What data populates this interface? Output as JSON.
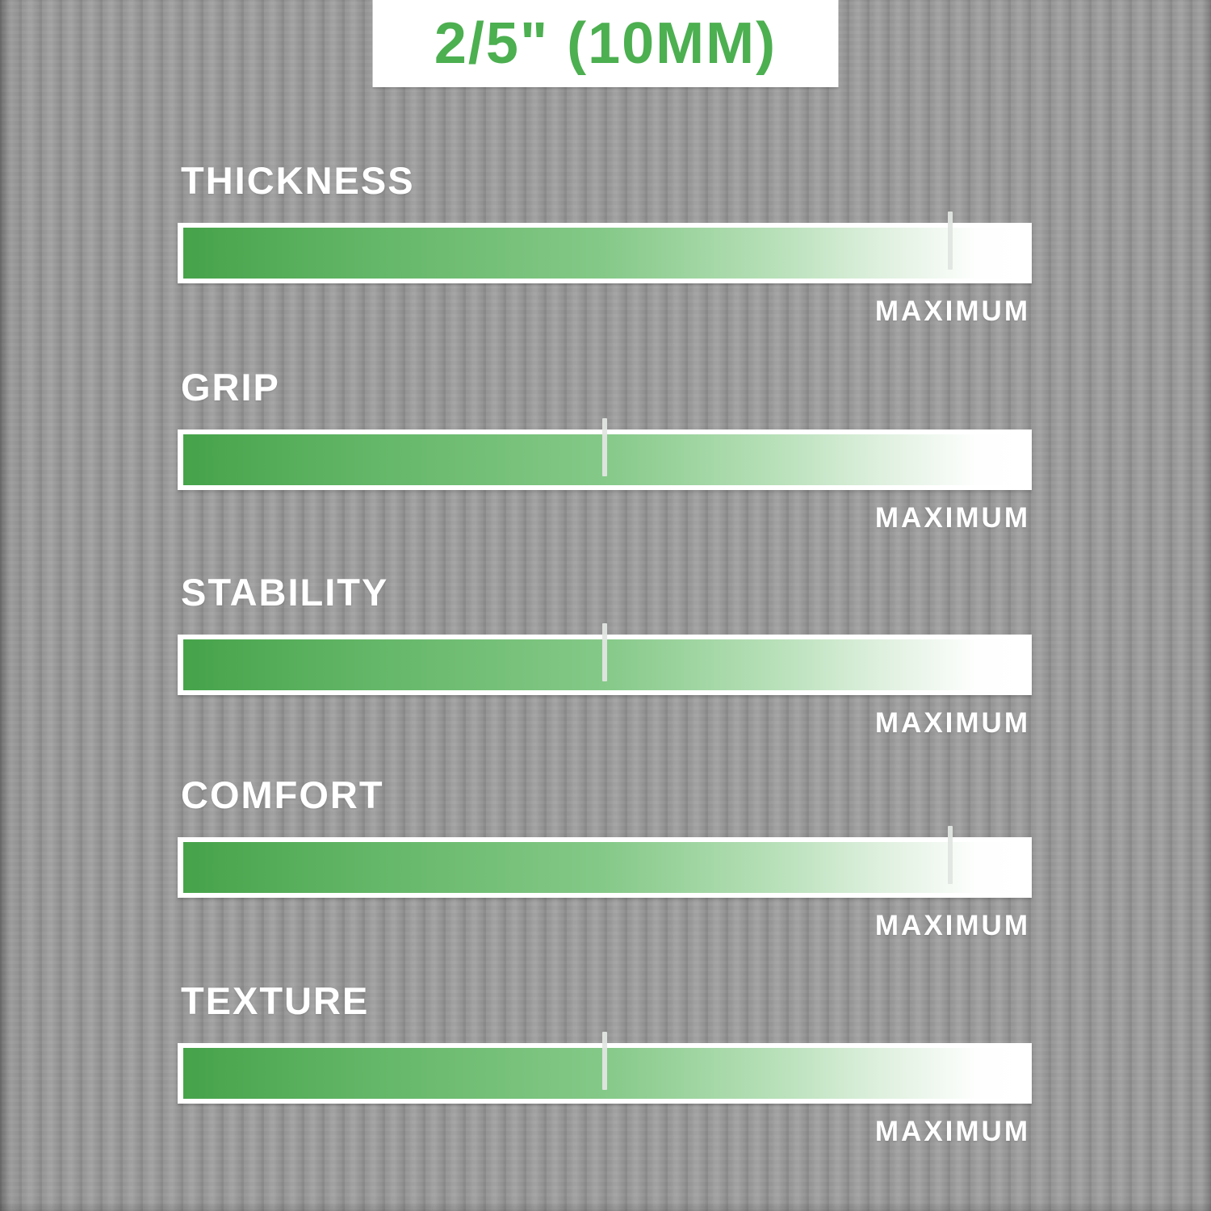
{
  "header": {
    "label": "2/5\" (10MM)"
  },
  "metrics": [
    {
      "label": "THICKNESS",
      "value_pct": 91,
      "max_label": "MAXIMUM"
    },
    {
      "label": "GRIP",
      "value_pct": 50,
      "max_label": "MAXIMUM"
    },
    {
      "label": "STABILITY",
      "value_pct": 50,
      "max_label": "MAXIMUM"
    },
    {
      "label": "COMFORT",
      "value_pct": 91,
      "max_label": "MAXIMUM"
    },
    {
      "label": "TEXTURE",
      "value_pct": 50,
      "max_label": "MAXIMUM"
    }
  ],
  "colors": {
    "accent_green": "#4CAF50",
    "bar_gradient_start": "#46A34A",
    "bar_gradient_end": "#FFFFFF",
    "background_gray": "#9B9B9B",
    "text_white": "#FFFFFF",
    "tick_marker": "#E2E6E1",
    "badge_background": "#FFFFFF"
  },
  "chart_data": {
    "type": "bar",
    "title": "2/5\" (10MM)",
    "categories": [
      "THICKNESS",
      "GRIP",
      "STABILITY",
      "COMFORT",
      "TEXTURE"
    ],
    "values": [
      91,
      50,
      50,
      91,
      50
    ],
    "value_unit": "percent of maximum (tick marker position on gradient scale)",
    "xlim": [
      0,
      100
    ],
    "scale_end_label": "MAXIMUM",
    "legend": "none",
    "grid": "off",
    "orientation": "horizontal",
    "bar_style": "green-to-white gradient with light tick marker"
  }
}
